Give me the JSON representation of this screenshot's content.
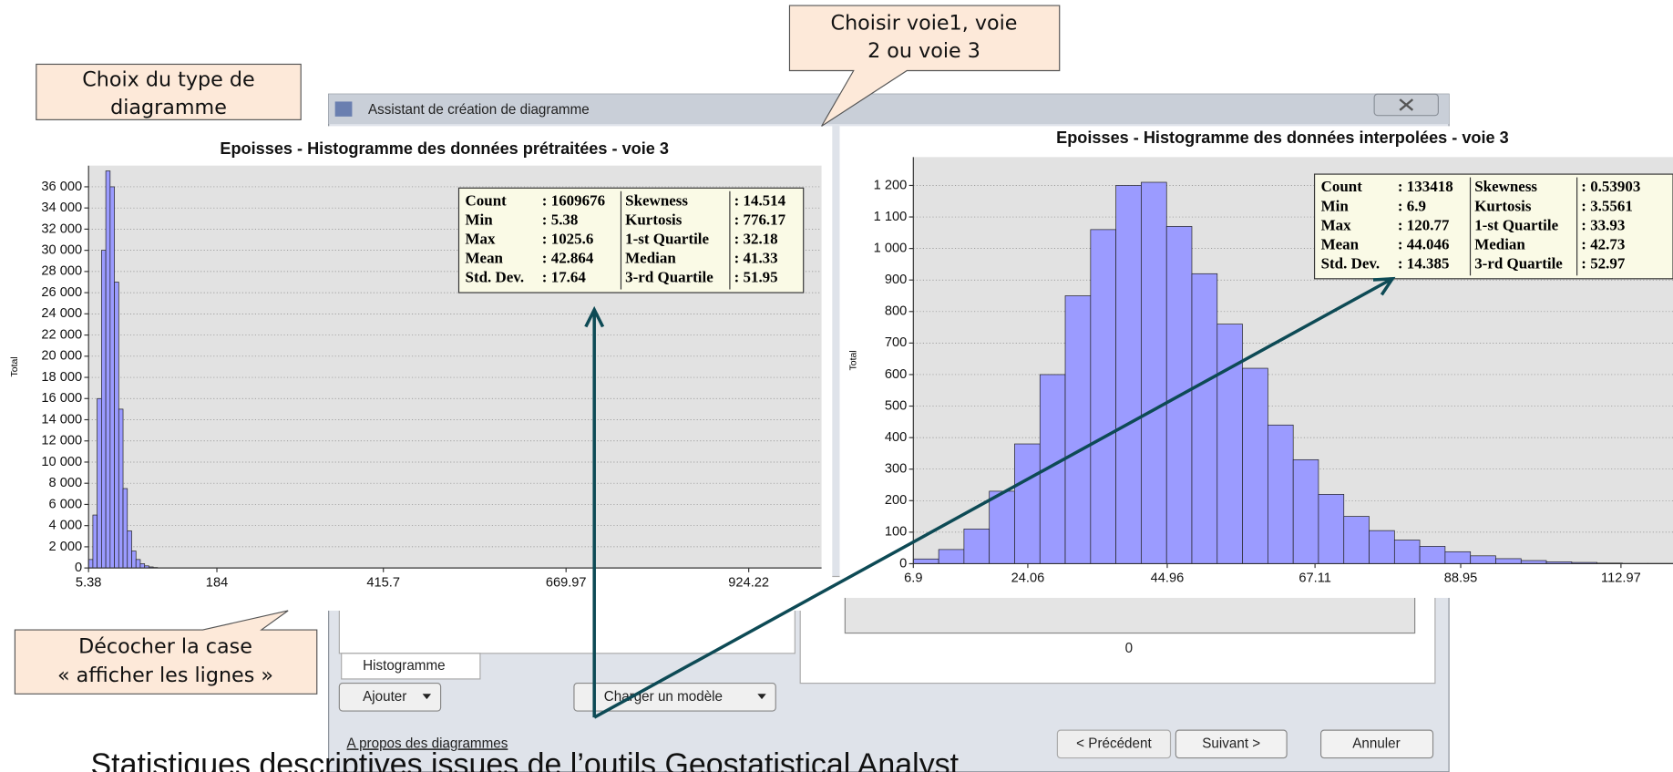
{
  "callouts": [
    {
      "lines": [
        "Choix du type de",
        "diagramme"
      ]
    },
    {
      "lines": [
        "Choisir voie1, voie",
        "2 ou voie 3"
      ]
    },
    {
      "lines": [
        "Décocher la case",
        "« afficher les lignes »"
      ]
    }
  ],
  "dialog": {
    "title": "Assistant de création de diagramme",
    "tab": "Histogramme",
    "buttons": {
      "add": "Ajouter",
      "load": "Charger un modèle",
      "prev": "< Précédent",
      "next": "Suivant >",
      "cancel": "Annuler"
    },
    "link": "A propos des diagrammes",
    "axis_zero": "0"
  },
  "footer": "Statistiques descriptives issues de l’outils Geostatistical Analyst",
  "chart_data": [
    {
      "type": "histogram",
      "title": "Epoisses - Histogramme des données prétraitées - voie 3",
      "ylabel": "Total",
      "color": "#9b9bff",
      "bins": [
        5.38,
        11.38,
        17.38,
        23.38,
        29.38,
        35.38,
        41.38,
        47.38,
        53.38,
        59.38,
        65.38,
        71.38,
        77.38,
        83.38,
        89.38,
        95.38,
        101.38
      ],
      "values": [
        800,
        5000,
        16000,
        30000,
        37500,
        36000,
        27000,
        15000,
        7500,
        3500,
        1600,
        800,
        400,
        200,
        100,
        50
      ],
      "xlim": [
        5.38,
        1025.6
      ],
      "ylim": [
        0,
        38000
      ],
      "xticks": [
        5.38,
        184,
        415.7,
        669.97,
        924.22
      ],
      "yticks": [
        0,
        {
          "value": 2000,
          "label": "2 000"
        },
        {
          "value": 4000,
          "label": "4 000"
        },
        {
          "value": 6000,
          "label": "6 000"
        },
        {
          "value": 8000,
          "label": "8 000"
        },
        {
          "value": 10000,
          "label": "10 000"
        },
        {
          "value": 12000,
          "label": "12 000"
        },
        {
          "value": 14000,
          "label": "14 000"
        },
        {
          "value": 16000,
          "label": "16 000"
        },
        {
          "value": 18000,
          "label": "18 000"
        },
        {
          "value": 20000,
          "label": "20 000"
        },
        {
          "value": 22000,
          "label": "22 000"
        },
        {
          "value": 24000,
          "label": "24 000"
        },
        {
          "value": 26000,
          "label": "26 000"
        },
        {
          "value": 28000,
          "label": "28 000"
        },
        {
          "value": 30000,
          "label": "30 000"
        },
        {
          "value": 32000,
          "label": "32 000"
        },
        {
          "value": 34000,
          "label": "34 000"
        },
        {
          "value": 36000,
          "label": "36 000"
        }
      ],
      "grid": true,
      "stats": [
        [
          "Count",
          ": 1609676",
          "Skewness",
          ": 14.514"
        ],
        [
          "Min",
          ": 5.38",
          "Kurtosis",
          ": 776.17"
        ],
        [
          "Max",
          ": 1025.6",
          "1-st Quartile",
          ": 32.18"
        ],
        [
          "Mean",
          ": 42.864",
          "Median",
          ": 41.33"
        ],
        [
          "Std. Dev.",
          ": 17.64",
          "3-rd Quartile",
          ": 51.95"
        ]
      ]
    },
    {
      "type": "histogram",
      "title": "Epoisses - Histogramme des données interpolées - voie 3",
      "ylabel": "Total",
      "color": "#9b9bff",
      "bins": [
        6.9,
        10.7,
        14.49,
        18.29,
        22.08,
        25.88,
        29.67,
        33.47,
        37.27,
        41.06,
        44.86,
        48.65,
        52.45,
        56.24,
        60.04,
        63.84,
        67.63,
        71.43,
        75.22,
        79.02,
        82.81,
        86.61,
        90.41,
        94.2,
        98.0,
        101.79,
        105.59,
        109.38,
        113.18,
        116.98,
        120.77
      ],
      "values": [
        15,
        45,
        110,
        230,
        380,
        600,
        850,
        1060,
        1200,
        1210,
        1070,
        920,
        760,
        620,
        440,
        330,
        220,
        150,
        105,
        75,
        55,
        38,
        25,
        16,
        10,
        6,
        4,
        2,
        1,
        1
      ],
      "xlim": [
        6.9,
        120.77
      ],
      "ylim": [
        0,
        1290
      ],
      "xticks": [
        6.9,
        24.06,
        44.96,
        67.11,
        88.95,
        112.97
      ],
      "yticks": [
        0,
        100,
        200,
        300,
        400,
        500,
        600,
        700,
        800,
        900,
        {
          "value": 1000,
          "label": "1 000"
        },
        {
          "value": 1100,
          "label": "1 100"
        },
        {
          "value": 1200,
          "label": "1 200"
        }
      ],
      "grid": true,
      "stats": [
        [
          "Count",
          ": 133418",
          "Skewness",
          ": 0.53903"
        ],
        [
          "Min",
          ": 6.9",
          "Kurtosis",
          ": 3.5561"
        ],
        [
          "Max",
          ": 120.77",
          "1-st Quartile",
          ": 33.93"
        ],
        [
          "Mean",
          ": 44.046",
          "Median",
          ": 42.73"
        ],
        [
          "Std. Dev.",
          ": 14.385",
          "3-rd Quartile",
          ": 52.97"
        ]
      ]
    }
  ]
}
